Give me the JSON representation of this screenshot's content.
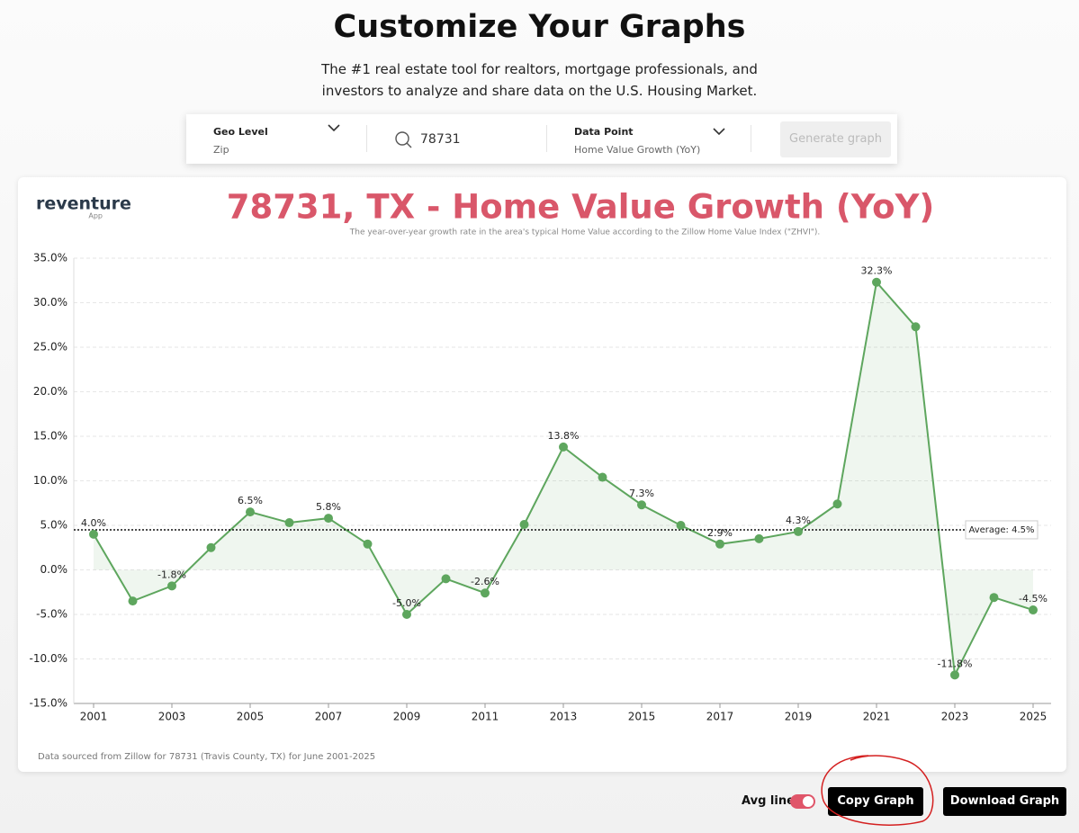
{
  "header": {
    "title": "Customize Your Graphs",
    "subtitle_lines": [
      "The #1 real estate tool for realtors, mortgage professionals, and",
      "investors to analyze and share data on the U.S. Housing Market."
    ]
  },
  "search": {
    "geo_level": {
      "label": "Geo Level",
      "value": "Zip"
    },
    "query": "78731",
    "data_point": {
      "label": "Data Point",
      "value": "Home Value Growth (YoY)"
    },
    "button": "Generate graph"
  },
  "brand": {
    "name": "reventure",
    "tag": "App"
  },
  "chart_data": {
    "type": "line",
    "title": "78731, TX - Home Value Growth (YoY)",
    "subtitle": "The year-over-year growth rate in the area's typical Home Value according to the Zillow Home Value Index (\"ZHVI\").",
    "categories": [
      "2001",
      null,
      "2003",
      null,
      "2005",
      null,
      "2007",
      null,
      "2009",
      null,
      "2011",
      null,
      "2013",
      null,
      "2015",
      null,
      "2017",
      null,
      "2019",
      null,
      "2021",
      null,
      "2023",
      null,
      "2025"
    ],
    "values": [
      4.0,
      -3.5,
      -1.8,
      2.5,
      6.5,
      5.3,
      5.8,
      2.9,
      -5.0,
      -1.0,
      -2.6,
      5.1,
      13.8,
      10.4,
      7.3,
      5.0,
      2.9,
      3.5,
      4.3,
      7.4,
      32.3,
      27.3,
      -11.8,
      -3.1,
      -4.5
    ],
    "value_labels": [
      "4.0%",
      null,
      "-1.8%",
      null,
      "6.5%",
      null,
      "5.8%",
      null,
      "-5.0%",
      null,
      "-2.6%",
      null,
      "13.8%",
      null,
      "7.3%",
      null,
      "2.9%",
      null,
      "4.3%",
      null,
      "32.3%",
      null,
      "-11.8%",
      null,
      "-4.5%"
    ],
    "color": "#5ea65e",
    "ylim": [
      -15,
      35
    ],
    "yticks": [
      {
        "value": -15,
        "label": "-15.0%"
      },
      {
        "value": -10,
        "label": "-10.0%"
      },
      {
        "value": -5,
        "label": "-5.0%"
      },
      {
        "value": 0,
        "label": "0.0%"
      },
      {
        "value": 5,
        "label": "5.0%"
      },
      {
        "value": 10,
        "label": "10.0%"
      },
      {
        "value": 15,
        "label": "15.0%"
      },
      {
        "value": 20,
        "label": "20.0%"
      },
      {
        "value": 25,
        "label": "25.0%"
      },
      {
        "value": 30,
        "label": "30.0%"
      },
      {
        "value": 35,
        "label": "35.0%"
      }
    ],
    "grid": true,
    "average": {
      "value": 4.5,
      "label": "Average: 4.5%"
    },
    "source": "Data sourced from Zillow for 78731 (Travis County, TX) for June 2001-2025"
  },
  "controls": {
    "avg_toggle": "Avg line",
    "copy": "Copy Graph",
    "download": "Download Graph"
  }
}
